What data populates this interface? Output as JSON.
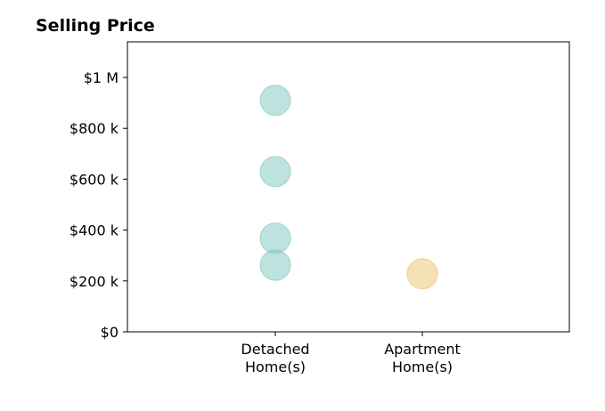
{
  "colors": {
    "detached": "#7ec8c0",
    "apartment": "#ebc46c",
    "axis": "#000000"
  },
  "chart_data": {
    "type": "scatter",
    "title": "Selling Price",
    "xlabel": "",
    "ylabel": "",
    "categories": [
      [
        "Detached",
        "Home(s)"
      ],
      [
        "Apartment",
        "Home(s)"
      ]
    ],
    "ylim": [
      0,
      1140000
    ],
    "yticks": [
      {
        "value": 0,
        "label": "$0"
      },
      {
        "value": 200000,
        "label": "$200 k"
      },
      {
        "value": 400000,
        "label": "$400 k"
      },
      {
        "value": 600000,
        "label": "$600 k"
      },
      {
        "value": 800000,
        "label": "$800 k"
      },
      {
        "value": 1000000,
        "label": "$1 M"
      }
    ],
    "grid": false,
    "series": [
      {
        "category": 0,
        "color_key": "detached",
        "values": [
          910000,
          630000,
          368000,
          262000
        ]
      },
      {
        "category": 1,
        "color_key": "apartment",
        "values": [
          228000
        ]
      }
    ]
  }
}
